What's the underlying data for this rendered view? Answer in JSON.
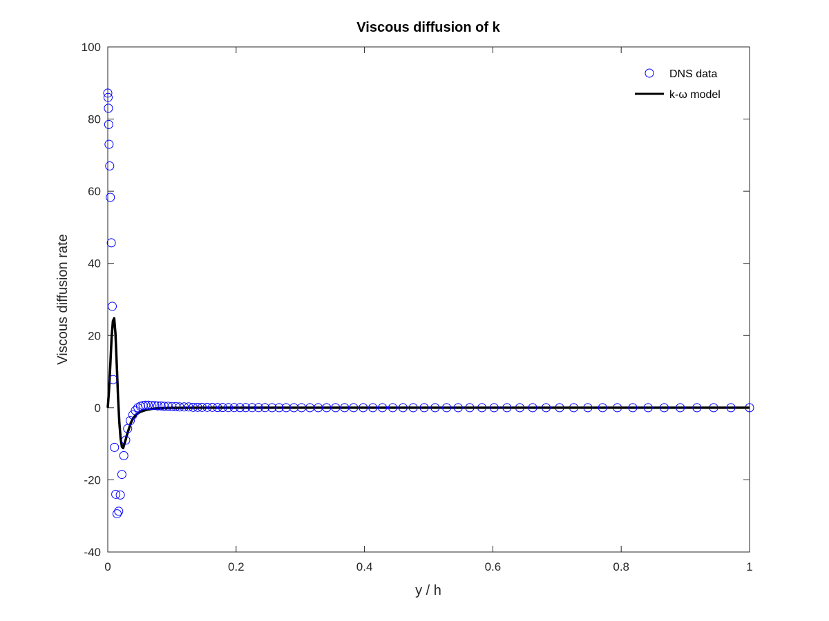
{
  "chart_data": {
    "type": "line",
    "title": "Viscous diffusion of k",
    "xlabel": "y / h",
    "ylabel": "Viscous diffusion rate",
    "xlim": [
      0,
      1
    ],
    "ylim": [
      -40,
      100
    ],
    "xticks": [
      0,
      0.2,
      0.4,
      0.6,
      0.8,
      1
    ],
    "xtick_labels": [
      "0",
      "0.2",
      "0.4",
      "0.6",
      "0.8",
      "1"
    ],
    "yticks": [
      -40,
      -20,
      0,
      20,
      40,
      60,
      80,
      100
    ],
    "ytick_labels": [
      "-40",
      "-20",
      "0",
      "20",
      "40",
      "60",
      "80",
      "100"
    ],
    "grid": false,
    "legend_position": "top-right",
    "series": [
      {
        "name": "DNS data",
        "style": "markers",
        "marker": "circle-open",
        "color": "#0000ff",
        "x": [
          0.0,
          0.0005,
          0.001,
          0.0015,
          0.002,
          0.003,
          0.004,
          0.0055,
          0.007,
          0.0085,
          0.0105,
          0.0125,
          0.0145,
          0.017,
          0.0195,
          0.022,
          0.025,
          0.028,
          0.031,
          0.035,
          0.039,
          0.043,
          0.047,
          0.051,
          0.055,
          0.059,
          0.063,
          0.068,
          0.073,
          0.078,
          0.083,
          0.088,
          0.094,
          0.1,
          0.106,
          0.112,
          0.119,
          0.126,
          0.133,
          0.14,
          0.147,
          0.155,
          0.163,
          0.171,
          0.179,
          0.188,
          0.197,
          0.206,
          0.215,
          0.225,
          0.235,
          0.245,
          0.256,
          0.267,
          0.278,
          0.29,
          0.302,
          0.315,
          0.328,
          0.341,
          0.355,
          0.369,
          0.383,
          0.398,
          0.413,
          0.428,
          0.444,
          0.46,
          0.476,
          0.493,
          0.51,
          0.528,
          0.546,
          0.564,
          0.583,
          0.602,
          0.622,
          0.642,
          0.662,
          0.683,
          0.704,
          0.726,
          0.748,
          0.771,
          0.794,
          0.818,
          0.842,
          0.867,
          0.892,
          0.918,
          0.944,
          0.971,
          1.0
        ],
        "y": [
          87.2,
          86.0,
          83.0,
          78.5,
          73.0,
          67.0,
          58.3,
          45.7,
          28.1,
          7.8,
          -11.0,
          -24.0,
          -29.4,
          -28.7,
          -24.2,
          -18.5,
          -13.3,
          -9.0,
          -5.8,
          -3.6,
          -2.0,
          -0.8,
          0.0,
          0.4,
          0.6,
          0.7,
          0.7,
          0.6,
          0.6,
          0.5,
          0.5,
          0.4,
          0.4,
          0.3,
          0.3,
          0.2,
          0.2,
          0.2,
          0.1,
          0.1,
          0.1,
          0.1,
          0.1,
          0.05,
          0.05,
          0.03,
          0.03,
          0.02,
          0.02,
          0.01,
          0.01,
          0.01,
          0.0,
          0.0,
          0.0,
          0.0,
          0.0,
          0.0,
          0.0,
          0.0,
          0.0,
          0.0,
          0.0,
          0.0,
          0.0,
          0.0,
          0.0,
          0.0,
          0.0,
          0.0,
          0.0,
          0.0,
          0.0,
          0.0,
          0.0,
          0.0,
          0.0,
          0.0,
          0.0,
          0.0,
          0.0,
          0.0,
          0.0,
          0.0,
          0.0,
          0.0,
          0.0,
          0.0,
          0.0,
          0.0,
          0.0,
          0.0,
          0.0
        ]
      },
      {
        "name": "k-ω model",
        "style": "line",
        "color": "#000000",
        "x": [
          0.0,
          0.002,
          0.004,
          0.006,
          0.008,
          0.01,
          0.012,
          0.014,
          0.016,
          0.018,
          0.02,
          0.022,
          0.024,
          0.026,
          0.028,
          0.03,
          0.033,
          0.036,
          0.04,
          0.045,
          0.05,
          0.06,
          0.07,
          0.08,
          0.1,
          0.12,
          0.15,
          0.2,
          0.3,
          0.5,
          0.7,
          1.0
        ],
        "y": [
          0.0,
          5.0,
          12.0,
          19.5,
          24.0,
          24.8,
          20.5,
          12.0,
          3.0,
          -4.0,
          -8.5,
          -10.8,
          -11.2,
          -10.0,
          -8.8,
          -7.5,
          -5.8,
          -4.2,
          -2.8,
          -1.8,
          -1.2,
          -0.6,
          -0.3,
          -0.15,
          -0.05,
          -0.02,
          -0.01,
          0.0,
          0.0,
          0.0,
          0.0,
          0.0
        ]
      }
    ]
  }
}
